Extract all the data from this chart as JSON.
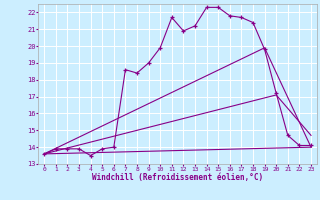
{
  "xlabel": "Windchill (Refroidissement éolien,°C)",
  "bg_color": "#cceeff",
  "grid_color": "#ffffff",
  "line_color": "#880088",
  "xlim": [
    -0.5,
    23.5
  ],
  "ylim": [
    13,
    22.5
  ],
  "yticks": [
    13,
    14,
    15,
    16,
    17,
    18,
    19,
    20,
    21,
    22
  ],
  "xticks": [
    0,
    1,
    2,
    3,
    4,
    5,
    6,
    7,
    8,
    9,
    10,
    11,
    12,
    13,
    14,
    15,
    16,
    17,
    18,
    19,
    20,
    21,
    22,
    23
  ],
  "line1_x": [
    0,
    1,
    2,
    3,
    4,
    5,
    6,
    7,
    8,
    9,
    10,
    11,
    12,
    13,
    14,
    15,
    16,
    17,
    18,
    19,
    20,
    21,
    22,
    23
  ],
  "line1_y": [
    13.6,
    13.9,
    13.9,
    13.9,
    13.5,
    13.9,
    14.0,
    18.6,
    18.4,
    19.0,
    19.9,
    21.7,
    20.9,
    21.2,
    22.3,
    22.3,
    21.8,
    21.7,
    21.4,
    19.8,
    17.2,
    14.7,
    14.1,
    14.1
  ],
  "line2_x": [
    0,
    23
  ],
  "line2_y": [
    13.6,
    14.0
  ],
  "line3_x": [
    0,
    19,
    23
  ],
  "line3_y": [
    13.6,
    19.9,
    14.0
  ],
  "line4_x": [
    0,
    20,
    23
  ],
  "line4_y": [
    13.6,
    17.1,
    14.7
  ]
}
